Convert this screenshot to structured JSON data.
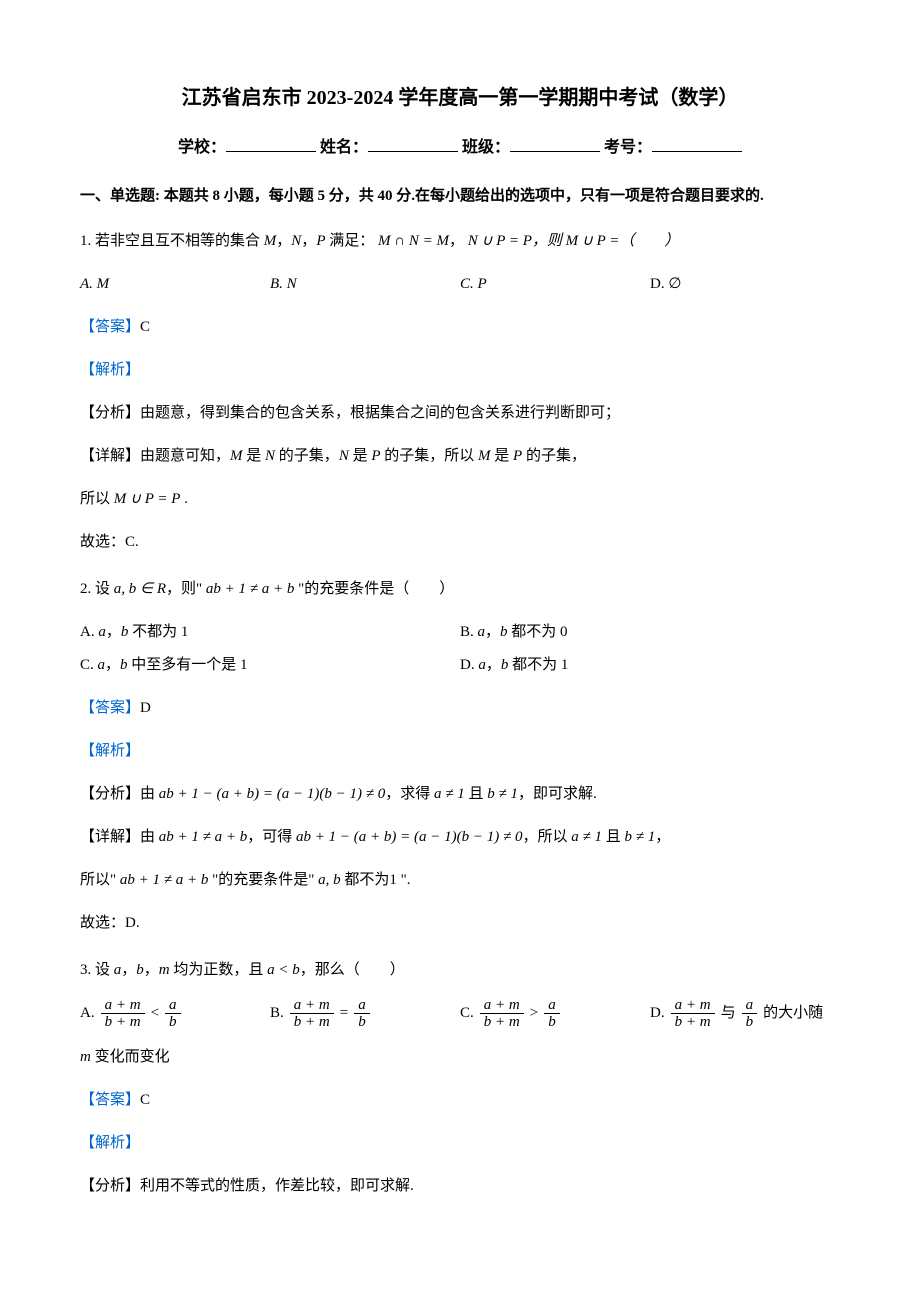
{
  "title": "江苏省启东市 2023-2024 学年度高一第一学期期中考试（数学）",
  "info": {
    "school": "学校：",
    "name": "姓名：",
    "class": "班级：",
    "id": "考号："
  },
  "section1": "一、单选题: 本题共 8 小题，每小题 5 分，共 40 分.在每小题给出的选项中，只有一项是符合题目要求的.",
  "q1": {
    "text_prefix": "1. 若非空且互不相等的集合 ",
    "text_mid": "，",
    "text_mid2": "，",
    "text_mid3": " 满足：",
    "cond1": "M ∩ N = M",
    "sep": "，",
    "cond2": "N ∪ P = P",
    "text_suffix": "，则 M ∪ P =（　　）",
    "optA": "A.  M",
    "optB": "B.  N",
    "optC": "C.  P",
    "optD": "D.  ∅",
    "answer_label": "【答案】",
    "answer": "C",
    "analysis_label": "【解析】",
    "fenxi": "【分析】由题意，得到集合的包含关系，根据集合之间的包含关系进行判断即可；",
    "xiangjie": "【详解】由题意可知，M 是 N 的子集，N 是 P 的子集，所以 M 是 P 的子集，",
    "line3": "所以 M ∪ P = P .",
    "guxuan": "故选：C."
  },
  "q2": {
    "text_prefix": "2. 设 ",
    "ab": "a, b ∈ R",
    "text_mid": "，则\" ",
    "cond": "ab + 1 ≠ a + b",
    "text_suffix": " \"的充要条件是（　　）",
    "optA": "A. a，b 不都为 1",
    "optB": "B. a，b 都不为 0",
    "optC": "C. a，b 中至多有一个是 1",
    "optD": "D. a，b 都不为 1",
    "answer_label": "【答案】",
    "answer": "D",
    "analysis_label": "【解析】",
    "fenxi": "【分析】由 ab + 1 − (a + b) = (a − 1)(b − 1) ≠ 0，求得 a ≠ 1 且 b ≠ 1，即可求解.",
    "xiangjie": "【详解】由 ab + 1 ≠ a + b，可得 ab + 1 − (a + b) = (a − 1)(b − 1) ≠ 0，所以 a ≠ 1 且 b ≠ 1，",
    "line3": "所以\" ab + 1 ≠ a + b \"的充要条件是\" a, b 都不为1 \".",
    "guxuan": "故选：D."
  },
  "q3": {
    "text": "3. 设 a，b，m 均为正数，且 a < b，那么（　　）",
    "optA_label": "A. ",
    "optB_label": "B. ",
    "optC_label": "C. ",
    "optD_label": "D. ",
    "optD_suffix": "的大小随",
    "frac_am_num": "a + m",
    "frac_am_den": "b + m",
    "frac_ab_num": "a",
    "frac_ab_den": "b",
    "lt": " < ",
    "eq": " = ",
    "gt": " > ",
    "yu": " 与 ",
    "line2": "m 变化而变化",
    "answer_label": "【答案】",
    "answer": "C",
    "analysis_label": "【解析】",
    "fenxi": "【分析】利用不等式的性质，作差比较，即可求解."
  },
  "colors": {
    "text": "#000000",
    "link": "#0066cc",
    "background": "#ffffff"
  }
}
